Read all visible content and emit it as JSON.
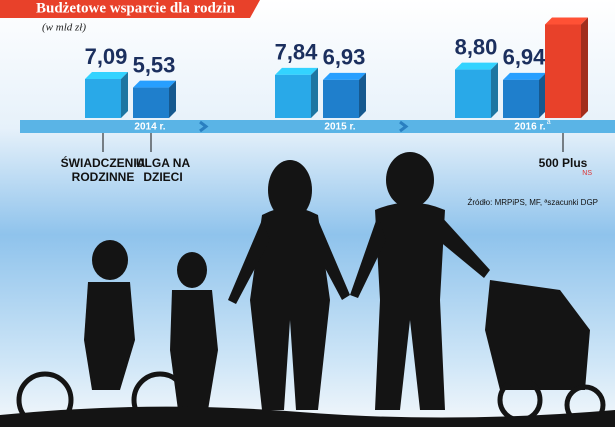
{
  "chart_data": {
    "type": "bar3d",
    "title": "Budżetowe wsparcie dla rodzin",
    "subtitle": "(w mld zł)",
    "categories": [
      "2014 r.",
      "2015 r.",
      "2016 r."
    ],
    "footnote_marker": "a",
    "series": [
      {
        "name": "ŚWIADCZENIA RODZINNE",
        "color": "#29a9e8",
        "values": [
          7.09,
          7.84,
          8.8
        ],
        "value_labels": [
          "7,09",
          "7,84",
          "8,80"
        ]
      },
      {
        "name": "ULGA NA DZIECI",
        "color": "#1f7fcc",
        "values": [
          5.53,
          6.93,
          6.94
        ],
        "value_labels": [
          "5,53",
          "6,93",
          "6,94"
        ]
      },
      {
        "name": "500 Plus",
        "color": "#e8412a",
        "values": [
          null,
          null,
          17
        ]
      }
    ],
    "source": "Źródło: MRPiPS, MF, ªszacunki DGP",
    "credit": "NS"
  }
}
